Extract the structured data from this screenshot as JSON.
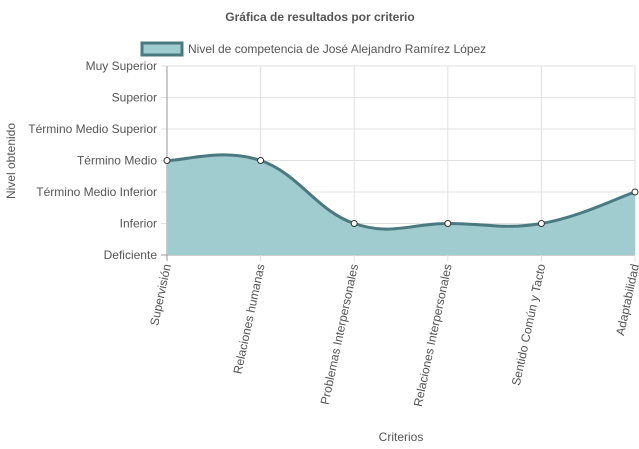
{
  "chart_data": {
    "type": "area",
    "title": "Gráfica de resultados por criterio",
    "xlabel": "Criterios",
    "ylabel": "Nivel obtenido",
    "categories": [
      "Supervisión",
      "Relaciones humanas",
      "Problemas Interpersonales",
      "Relaciones Interpersonales",
      "Sentido Común y Tacto",
      "Adaptabilidad"
    ],
    "y_levels": [
      "Deficiente",
      "Inferior",
      "Término Medio Inferior",
      "Término Medio",
      "Término Medio Superior",
      "Superior",
      "Muy Superior"
    ],
    "ylim": [
      0,
      6
    ],
    "series": [
      {
        "name": "Nivel de competencia de José Alejandro Ramírez López",
        "values": [
          3,
          3,
          1,
          1,
          1,
          2
        ]
      }
    ],
    "legend_position": "top",
    "grid": true,
    "colors": {
      "fill": "#a0cbcf",
      "line": "#4a7a80",
      "point_fill": "#ffffff",
      "grid": "#e0e0e0",
      "axis": "#999999"
    }
  }
}
